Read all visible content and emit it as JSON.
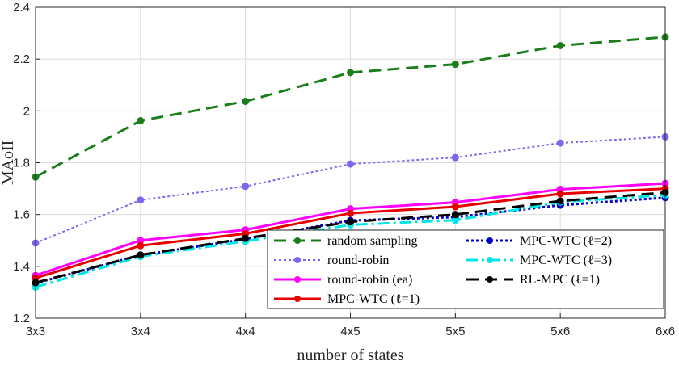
{
  "chart_data": {
    "type": "line",
    "title": "",
    "xlabel": "number of states",
    "ylabel": "MAoII",
    "categories": [
      "3x3",
      "3x4",
      "4x4",
      "4x5",
      "5x5",
      "5x6",
      "6x6"
    ],
    "ylim": [
      1.2,
      2.4
    ],
    "yticks": [
      1.2,
      1.4,
      1.6,
      1.8,
      2,
      2.2,
      2.4
    ],
    "ytick_labels": [
      "1.2",
      "1.4",
      "1.6",
      "1.8",
      "2",
      "2.2",
      "2.4"
    ],
    "grid": true,
    "legend_position": "bottom-right",
    "series": [
      {
        "name": "random sampling",
        "values": [
          1.745,
          1.962,
          2.037,
          2.148,
          2.18,
          2.252,
          2.285
        ],
        "color": "#1a7f1a",
        "dash": "dashed",
        "width": "thick"
      },
      {
        "name": "round-robin",
        "values": [
          1.49,
          1.656,
          1.709,
          1.795,
          1.82,
          1.876,
          1.9
        ],
        "color": "#7b68ee",
        "dash": "dotted",
        "width": "normal"
      },
      {
        "name": "round-robin (ea)",
        "values": [
          1.365,
          1.5,
          1.541,
          1.622,
          1.647,
          1.697,
          1.72
        ],
        "color": "#ff00ff",
        "dash": "solid",
        "width": "thick"
      },
      {
        "name": "MPC-WTC (ℓ=1)",
        "values": [
          1.355,
          1.48,
          1.526,
          1.605,
          1.63,
          1.68,
          1.7
        ],
        "color": "#e60000",
        "dash": "solid",
        "width": "thick"
      },
      {
        "name": "MPC-WTC (ℓ=2)",
        "values": [
          1.335,
          1.443,
          1.505,
          1.577,
          1.59,
          1.636,
          1.665
        ],
        "color": "#0000cc",
        "dash": "dotted",
        "width": "thick"
      },
      {
        "name": "MPC-WTC (ℓ=3)",
        "values": [
          1.32,
          1.438,
          1.497,
          1.56,
          1.578,
          1.648,
          1.675
        ],
        "color": "#00e5e5",
        "dash": "dashdot",
        "width": "thick"
      },
      {
        "name": "RL-MPC (ℓ=1)",
        "values": [
          1.337,
          1.444,
          1.508,
          1.572,
          1.6,
          1.652,
          1.685
        ],
        "color": "#000000",
        "dash": "dashed",
        "width": "thick"
      }
    ]
  }
}
